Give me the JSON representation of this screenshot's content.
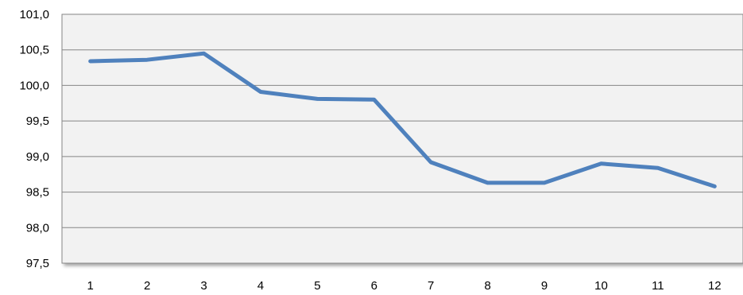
{
  "chart_data": {
    "type": "line",
    "categories": [
      "1",
      "2",
      "3",
      "4",
      "5",
      "6",
      "7",
      "8",
      "9",
      "10",
      "11",
      "12"
    ],
    "series": [
      {
        "values": [
          100.34,
          100.36,
          100.45,
          99.91,
          99.81,
          99.8,
          98.92,
          98.63,
          98.63,
          98.9,
          98.84,
          98.58
        ]
      }
    ],
    "y_ticks": [
      "101,0",
      "100,5",
      "100,0",
      "99,5",
      "99,0",
      "98,5",
      "98,0",
      "97,5"
    ],
    "ylim": [
      97.5,
      101.0
    ],
    "grid": true,
    "legend": "none",
    "colors": {
      "line": "#4F81BD",
      "plot_background": "#F2F2F2",
      "gridline": "#868686"
    }
  }
}
